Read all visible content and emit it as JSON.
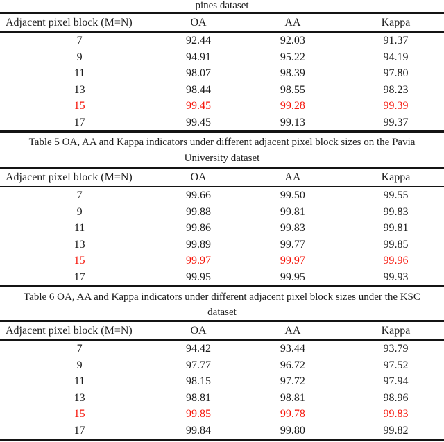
{
  "page": {
    "background": "#ffffff",
    "text_color": "#1c1c1c",
    "rule_color": "#141414",
    "highlight_color": "#f6190e"
  },
  "tables": [
    {
      "caption_line1": "pines dataset",
      "headers": {
        "block": "Adjacent pixel block (M=N)",
        "oa": "OA",
        "aa": "AA",
        "kappa": "Kappa"
      },
      "rows": [
        {
          "block": "7",
          "oa": "92.44",
          "aa": "92.03",
          "kappa": "91.37",
          "highlight": false
        },
        {
          "block": "9",
          "oa": "94.91",
          "aa": "95.22",
          "kappa": "94.19",
          "highlight": false
        },
        {
          "block": "11",
          "oa": "98.07",
          "aa": "98.39",
          "kappa": "97.80",
          "highlight": false
        },
        {
          "block": "13",
          "oa": "98.44",
          "aa": "98.55",
          "kappa": "98.23",
          "highlight": false
        },
        {
          "block": "15",
          "oa": "99.45",
          "aa": "99.28",
          "kappa": "99.39",
          "highlight": true
        },
        {
          "block": "17",
          "oa": "99.45",
          "aa": "99.13",
          "kappa": "99.37",
          "highlight": false
        }
      ]
    },
    {
      "caption_line1": "Table 5 OA, AA and Kappa indicators under different adjacent pixel block sizes on the Pavia",
      "caption_line2": "University dataset",
      "headers": {
        "block": "Adjacent pixel block (M=N)",
        "oa": "OA",
        "aa": "AA",
        "kappa": "Kappa"
      },
      "rows": [
        {
          "block": "7",
          "oa": "99.66",
          "aa": "99.50",
          "kappa": "99.55",
          "highlight": false
        },
        {
          "block": "9",
          "oa": "99.88",
          "aa": "99.81",
          "kappa": "99.83",
          "highlight": false
        },
        {
          "block": "11",
          "oa": "99.86",
          "aa": "99.83",
          "kappa": "99.81",
          "highlight": false
        },
        {
          "block": "13",
          "oa": "99.89",
          "aa": "99.77",
          "kappa": "99.85",
          "highlight": false
        },
        {
          "block": "15",
          "oa": "99.97",
          "aa": "99.97",
          "kappa": "99.96",
          "highlight": true
        },
        {
          "block": "17",
          "oa": "99.95",
          "aa": "99.95",
          "kappa": "99.93",
          "highlight": false
        }
      ]
    },
    {
      "caption_line1": "Table 6 OA, AA and Kappa indicators under different adjacent pixel block sizes under the KSC",
      "caption_line2": "dataset",
      "headers": {
        "block": "Adjacent pixel block (M=N)",
        "oa": "OA",
        "aa": "AA",
        "kappa": "Kappa"
      },
      "rows": [
        {
          "block": "7",
          "oa": "94.42",
          "aa": "93.44",
          "kappa": "93.79",
          "highlight": false
        },
        {
          "block": "9",
          "oa": "97.77",
          "aa": "96.72",
          "kappa": "97.52",
          "highlight": false
        },
        {
          "block": "11",
          "oa": "98.15",
          "aa": "97.72",
          "kappa": "97.94",
          "highlight": false
        },
        {
          "block": "13",
          "oa": "98.81",
          "aa": "98.81",
          "kappa": "98.96",
          "highlight": false
        },
        {
          "block": "15",
          "oa": "99.85",
          "aa": "99.78",
          "kappa": "99.83",
          "highlight": true
        },
        {
          "block": "17",
          "oa": "99.84",
          "aa": "99.80",
          "kappa": "99.82",
          "highlight": false
        }
      ]
    }
  ]
}
